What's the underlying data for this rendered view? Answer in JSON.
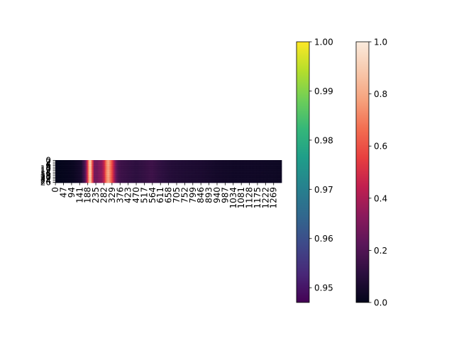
{
  "chart_data": {
    "type": "heatmap",
    "title": "",
    "xlabel": "",
    "ylabel": "",
    "x_tick_labels": [
      "0",
      "47",
      "94",
      "141",
      "188",
      "235",
      "282",
      "329",
      "376",
      "423",
      "470",
      "517",
      "564",
      "611",
      "658",
      "705",
      "752",
      "799",
      "846",
      "893",
      "940",
      "987",
      "1034",
      "1081",
      "1128",
      "1175",
      "1222",
      "1269"
    ],
    "x_range": [
      0,
      1316
    ],
    "y_tick_labels": [
      "0",
      "2",
      "4",
      "6",
      "8",
      "10",
      "12",
      "14",
      "16",
      "18",
      "20",
      "22",
      "24",
      "26"
    ],
    "y_range": [
      0,
      27
    ],
    "profile": {
      "x": [
        0,
        100,
        150,
        175,
        188,
        200,
        212,
        225,
        240,
        255,
        270,
        282,
        295,
        305,
        315,
        330,
        345,
        360,
        380,
        420,
        470,
        520,
        560,
        600,
        660,
        700,
        760,
        850,
        940,
        1040,
        1140,
        1316
      ],
      "intensity": [
        0.0,
        0.02,
        0.06,
        0.22,
        0.55,
        0.98,
        0.72,
        0.3,
        0.28,
        0.32,
        0.35,
        0.45,
        0.7,
        0.85,
        0.78,
        0.6,
        0.35,
        0.2,
        0.16,
        0.14,
        0.12,
        0.14,
        0.16,
        0.13,
        0.1,
        0.09,
        0.08,
        0.07,
        0.05,
        0.04,
        0.04,
        0.03
      ]
    },
    "colorbars": [
      {
        "name": "viridis",
        "range": [
          0.947,
          1.0
        ],
        "ticks": [
          "0.95",
          "0.96",
          "0.97",
          "0.98",
          "0.99",
          "1.00"
        ],
        "tick_values": [
          0.95,
          0.96,
          0.97,
          0.98,
          0.99,
          1.0
        ],
        "stops": [
          "#440154",
          "#482878",
          "#3e4989",
          "#31688e",
          "#26828e",
          "#1f9e89",
          "#35b779",
          "#6ece58",
          "#b5de2b",
          "#fde725"
        ]
      },
      {
        "name": "rocket",
        "range": [
          0.0,
          1.0
        ],
        "ticks": [
          "0.0",
          "0.2",
          "0.4",
          "0.6",
          "0.8",
          "1.0"
        ],
        "tick_values": [
          0.0,
          0.2,
          0.4,
          0.6,
          0.8,
          1.0
        ],
        "stops": [
          "#03051a",
          "#2b0f3e",
          "#5a1659",
          "#8b1a5c",
          "#c11f4f",
          "#e83f3f",
          "#f36e51",
          "#f6a27d",
          "#f8c9ad",
          "#faebdd"
        ]
      }
    ]
  }
}
